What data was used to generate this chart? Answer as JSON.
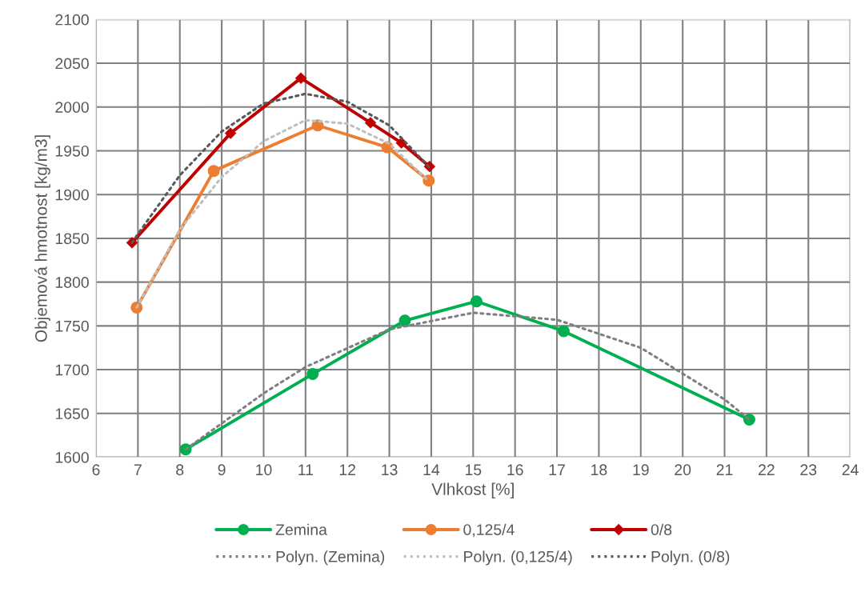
{
  "chart_data": {
    "type": "line",
    "xlabel": "Vlhkost [%]",
    "ylabel": "Objemová hmotnost [kg/m3]",
    "xlim": [
      6,
      24
    ],
    "xticks": [
      6,
      7,
      8,
      9,
      10,
      11,
      12,
      13,
      14,
      15,
      16,
      17,
      18,
      19,
      20,
      21,
      22,
      23,
      24
    ],
    "ylim": [
      1600,
      2100
    ],
    "yticks": [
      1600,
      1650,
      1700,
      1750,
      1800,
      1850,
      1900,
      1950,
      2000,
      2050,
      2100
    ],
    "grid": true,
    "legend": "bottom",
    "series": [
      {
        "name": "Zemina",
        "color": "#00b050",
        "marker": "circle",
        "line_style": "solid",
        "x": [
          8.14,
          11.17,
          13.37,
          15.08,
          17.16,
          21.59
        ],
        "values": [
          1609,
          1695,
          1756,
          1778,
          1744,
          1643
        ]
      },
      {
        "name": "0,125/4",
        "color": "#ed7d31",
        "marker": "circle",
        "line_style": "solid",
        "x": [
          6.97,
          8.81,
          11.29,
          12.95,
          13.94
        ],
        "values": [
          1771,
          1927,
          1979,
          1954,
          1916
        ]
      },
      {
        "name": "0/8",
        "color": "#c00000",
        "marker": "diamond",
        "line_style": "solid",
        "x": [
          6.86,
          9.21,
          10.89,
          12.55,
          13.29,
          13.96
        ],
        "values": [
          1845,
          1970,
          2033,
          1982,
          1959,
          1932
        ]
      },
      {
        "name": "Polyn. (Zemina)",
        "color": "#7f7f7f",
        "marker": "none",
        "line_style": "dotted",
        "x": [
          8.14,
          10,
          11,
          13,
          15,
          17,
          19,
          21,
          21.59
        ],
        "values": [
          1609,
          1673,
          1703,
          1746,
          1765,
          1757,
          1725,
          1666,
          1643
        ]
      },
      {
        "name": "Polyn. (0,125/4)",
        "color": "#bfbfbf",
        "marker": "none",
        "line_style": "dotted",
        "x": [
          6.97,
          8,
          9,
          10,
          11,
          12,
          13,
          13.94
        ],
        "values": [
          1771,
          1860,
          1920,
          1961,
          1985,
          1981,
          1958,
          1915
        ]
      },
      {
        "name": "Polyn. (0/8)",
        "color": "#595959",
        "marker": "none",
        "line_style": "dotted",
        "x": [
          6.86,
          7,
          8,
          9,
          10,
          11,
          12,
          13,
          13.96
        ],
        "values": [
          1845,
          1855,
          1922,
          1972,
          2004,
          2015,
          2006,
          1979,
          1931
        ]
      }
    ]
  }
}
